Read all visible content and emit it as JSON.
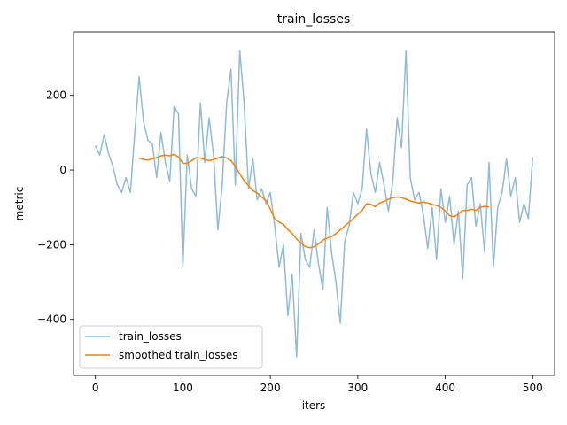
{
  "chart_data": {
    "type": "line",
    "title": "train_losses",
    "xlabel": "iters",
    "ylabel": "metric",
    "xlim": [
      -25,
      525
    ],
    "ylim": [
      -550,
      370
    ],
    "xticks": [
      0,
      100,
      200,
      300,
      400,
      500
    ],
    "yticks": [
      -400,
      -200,
      0,
      200
    ],
    "grid": false,
    "legend_position": "lower-left",
    "series": [
      {
        "name": "train_losses",
        "color": "#1f77b4",
        "opacity": 0.5,
        "x": [
          0,
          5,
          10,
          15,
          20,
          25,
          30,
          35,
          40,
          45,
          50,
          55,
          60,
          65,
          70,
          75,
          80,
          85,
          90,
          95,
          100,
          105,
          110,
          115,
          120,
          125,
          130,
          135,
          140,
          145,
          150,
          155,
          160,
          165,
          170,
          175,
          180,
          185,
          190,
          195,
          200,
          205,
          210,
          215,
          220,
          225,
          230,
          235,
          240,
          245,
          250,
          255,
          260,
          265,
          270,
          275,
          280,
          285,
          290,
          295,
          300,
          305,
          310,
          315,
          320,
          325,
          330,
          335,
          340,
          345,
          350,
          355,
          360,
          365,
          370,
          375,
          380,
          385,
          390,
          395,
          400,
          405,
          410,
          415,
          420,
          425,
          430,
          435,
          440,
          445,
          450,
          455,
          460,
          465,
          470,
          475,
          480,
          485,
          490,
          495,
          500
        ],
        "y": [
          65,
          40,
          95,
          45,
          10,
          -40,
          -60,
          -20,
          -60,
          100,
          250,
          130,
          80,
          70,
          -20,
          100,
          20,
          -30,
          170,
          150,
          -260,
          40,
          -50,
          -70,
          180,
          20,
          140,
          40,
          -160,
          -40,
          180,
          270,
          -40,
          320,
          180,
          -50,
          30,
          -80,
          -50,
          -90,
          -60,
          -150,
          -260,
          -200,
          -390,
          -280,
          -500,
          -170,
          -240,
          -260,
          -160,
          -250,
          -320,
          -100,
          -220,
          -300,
          -410,
          -190,
          -150,
          -60,
          -90,
          -50,
          110,
          -10,
          -60,
          20,
          -40,
          -110,
          -30,
          140,
          60,
          320,
          -20,
          -80,
          -60,
          -120,
          -210,
          -100,
          -240,
          -50,
          -140,
          -70,
          -200,
          -110,
          -290,
          -40,
          -20,
          -150,
          -90,
          -220,
          20,
          -260,
          -100,
          -60,
          30,
          -70,
          -20,
          -140,
          -90,
          -130,
          35
        ]
      },
      {
        "name": "smoothed train_losses",
        "color": "#ff7f0e",
        "opacity": 1,
        "x": [
          50,
          55,
          60,
          65,
          70,
          75,
          80,
          85,
          90,
          95,
          100,
          105,
          110,
          115,
          120,
          125,
          130,
          135,
          140,
          145,
          150,
          155,
          160,
          165,
          170,
          175,
          180,
          185,
          190,
          195,
          200,
          205,
          210,
          215,
          220,
          225,
          230,
          235,
          240,
          245,
          250,
          255,
          260,
          265,
          270,
          275,
          280,
          285,
          290,
          295,
          300,
          305,
          310,
          315,
          320,
          325,
          330,
          335,
          340,
          345,
          350,
          355,
          360,
          365,
          370,
          375,
          380,
          385,
          390,
          395,
          400,
          405,
          410,
          415,
          420,
          425,
          430,
          435,
          440,
          445,
          450
        ],
        "y": [
          32,
          28,
          27,
          30,
          33,
          38,
          40,
          38,
          42,
          35,
          18,
          18,
          25,
          33,
          32,
          28,
          25,
          28,
          32,
          36,
          32,
          25,
          10,
          -10,
          -28,
          -42,
          -55,
          -62,
          -72,
          -82,
          -105,
          -130,
          -140,
          -145,
          -160,
          -170,
          -185,
          -195,
          -205,
          -208,
          -205,
          -198,
          -188,
          -182,
          -178,
          -170,
          -160,
          -150,
          -140,
          -130,
          -118,
          -108,
          -90,
          -92,
          -98,
          -88,
          -84,
          -78,
          -74,
          -72,
          -74,
          -78,
          -83,
          -86,
          -88,
          -86,
          -88,
          -92,
          -95,
          -100,
          -110,
          -122,
          -125,
          -118,
          -108,
          -108,
          -105,
          -108,
          -100,
          -97,
          -99
        ]
      }
    ]
  }
}
